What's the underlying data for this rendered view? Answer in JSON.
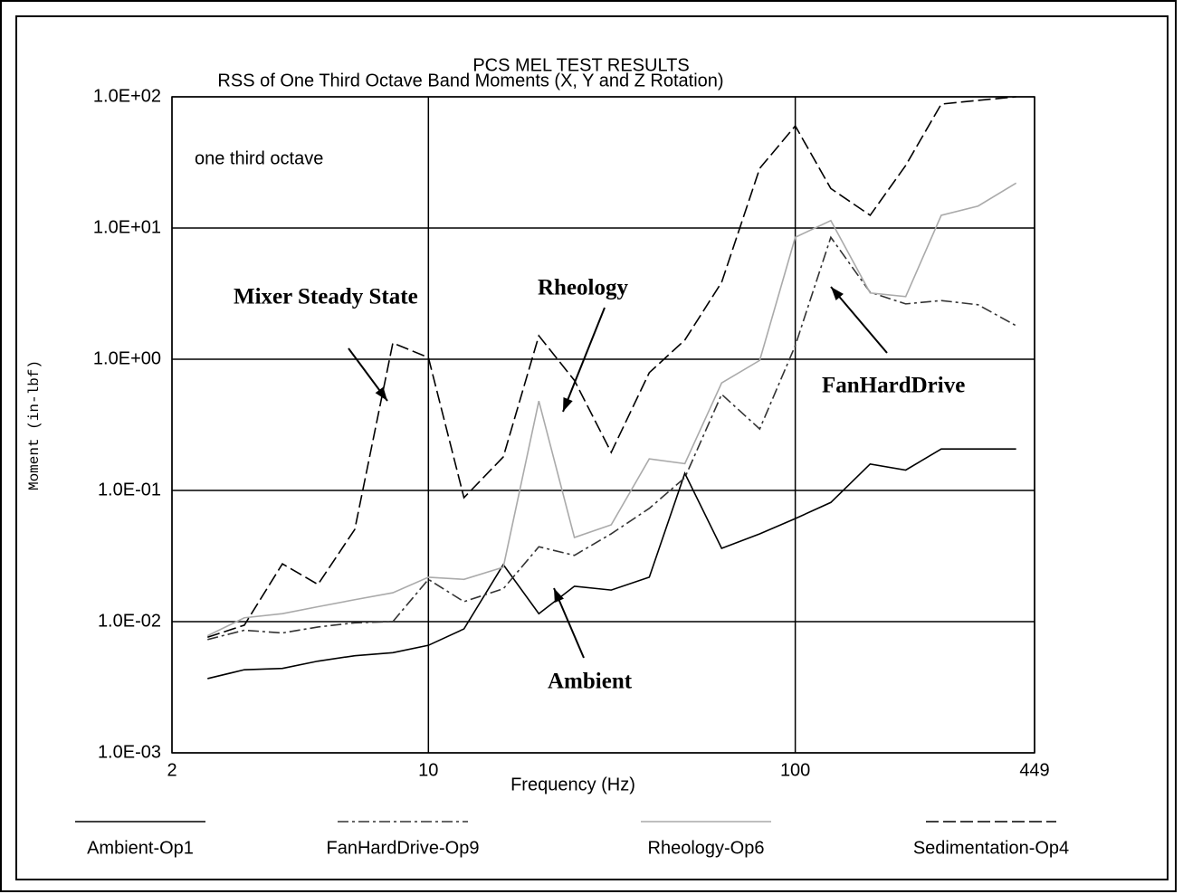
{
  "chart_data": {
    "type": "line",
    "title": "PCS MEL TEST RESULTS",
    "subtitle": "RSS of One Third Octave Band Moments (X, Y and Z Rotation)",
    "x_label": "Frequency (Hz)",
    "y_label": "Moment (in-lbf)",
    "x_log": true,
    "y_log": true,
    "grid": true,
    "xlim": [
      2,
      449
    ],
    "xticks": [
      2,
      10,
      100,
      449
    ],
    "ylim": [
      0.001,
      100
    ],
    "yticks": [
      {
        "value": 0.001,
        "label": "1.0E-03"
      },
      {
        "value": 0.01,
        "label": "1.0E-02"
      },
      {
        "value": 0.1,
        "label": "1.0E-01"
      },
      {
        "value": 1,
        "label": "1.0E+00"
      },
      {
        "value": 10,
        "label": "1.0E+01"
      },
      {
        "value": 100,
        "label": "1.0E+02"
      }
    ],
    "x": [
      2.5,
      3.15,
      4,
      5,
      6.3,
      8,
      10,
      12.5,
      16,
      20,
      25,
      31.5,
      40,
      50,
      63,
      80,
      100,
      125,
      160,
      200,
      250,
      315,
      400
    ],
    "series": [
      {
        "name": "Ambient-Op1",
        "color": "#000000",
        "style": "solid",
        "values": [
          0.00368,
          0.0043,
          0.0044,
          0.005,
          0.0055,
          0.0058,
          0.0066,
          0.0088,
          0.0272,
          0.0115,
          0.0186,
          0.0174,
          0.0218,
          0.135,
          0.0362,
          0.0467,
          0.061,
          0.081,
          0.159,
          0.143,
          0.207,
          0.207,
          0.207
        ]
      },
      {
        "name": "FanHardDrive-Op9",
        "color": "#333333",
        "style": "dashdot",
        "values": [
          0.0073,
          0.0086,
          0.0082,
          0.0091,
          0.0098,
          0.01,
          0.021,
          0.0142,
          0.0178,
          0.0372,
          0.032,
          0.0467,
          0.073,
          0.125,
          0.54,
          0.294,
          1.27,
          8.5,
          3.24,
          2.64,
          2.8,
          2.6,
          1.8
        ]
      },
      {
        "name": "Rheology-Op6",
        "color": "#aaaaaa",
        "style": "solid",
        "values": [
          0.0078,
          0.0107,
          0.0115,
          0.013,
          0.0147,
          0.0166,
          0.0218,
          0.021,
          0.026,
          0.48,
          0.0438,
          0.0547,
          0.174,
          0.16,
          0.66,
          0.98,
          8.5,
          11.4,
          3.2,
          3.0,
          12.5,
          14.7,
          22
        ]
      },
      {
        "name": "Sedimentation-Op4",
        "color": "#000000",
        "style": "dashed",
        "values": [
          0.0076,
          0.0094,
          0.0276,
          0.0192,
          0.0505,
          1.33,
          1.03,
          0.088,
          0.18,
          1.51,
          0.69,
          0.195,
          0.79,
          1.4,
          3.86,
          28.5,
          60,
          20,
          12.5,
          30,
          88,
          94,
          100
        ]
      }
    ],
    "annotations": [
      "one third octave",
      "Mixer Steady State",
      "Rheology",
      "FanHardDrive",
      "Ambient"
    ]
  }
}
